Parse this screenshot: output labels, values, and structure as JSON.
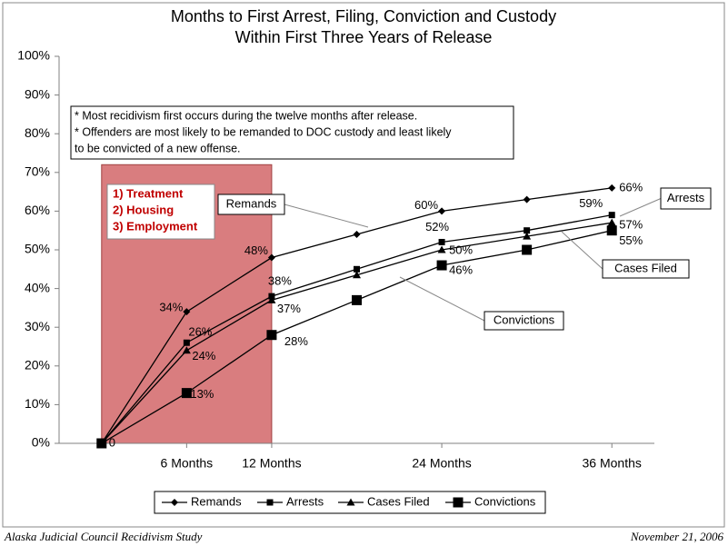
{
  "chart_data": {
    "type": "line",
    "title_lines": [
      "Months to First Arrest, Filing, Conviction and Custody",
      "Within First Three Years of Release"
    ],
    "x": [
      0,
      6,
      12,
      18,
      24,
      30,
      36
    ],
    "xlim": [
      -3,
      39
    ],
    "xticks": [
      {
        "value": 6,
        "label": "6 Months"
      },
      {
        "value": 12,
        "label": "12 Months"
      },
      {
        "value": 24,
        "label": "24 Months"
      },
      {
        "value": 36,
        "label": "36 Months"
      }
    ],
    "ylim": [
      0,
      100
    ],
    "yticks": [
      {
        "value": 0,
        "label": "0%"
      },
      {
        "value": 10,
        "label": "10%"
      },
      {
        "value": 20,
        "label": "20%"
      },
      {
        "value": 30,
        "label": "30%"
      },
      {
        "value": 40,
        "label": "40%"
      },
      {
        "value": 50,
        "label": "50%"
      },
      {
        "value": 60,
        "label": "60%"
      },
      {
        "value": 70,
        "label": "70%"
      },
      {
        "value": 80,
        "label": "80%"
      },
      {
        "value": 90,
        "label": "90%"
      },
      {
        "value": 100,
        "label": "100%"
      }
    ],
    "grid": false,
    "legend": "bottom",
    "series": [
      {
        "name": "Remands",
        "color": "#000000",
        "marker": "diamond",
        "values": [
          0,
          34,
          48,
          54,
          60,
          63,
          66
        ],
        "value_labels": [
          "0",
          "34%",
          "48%",
          null,
          "60%",
          null,
          "66%"
        ]
      },
      {
        "name": "Arrests",
        "color": "#000000",
        "marker": "square",
        "values": [
          0,
          26,
          38,
          45,
          52,
          55,
          59
        ],
        "value_labels": [
          null,
          "26%",
          "38%",
          null,
          "52%",
          null,
          "59%"
        ]
      },
      {
        "name": "Cases Filed",
        "color": "#000000",
        "marker": "triangle",
        "values": [
          0,
          24,
          37,
          43.5,
          50,
          53.5,
          57
        ],
        "value_labels": [
          null,
          "24%",
          "37%",
          null,
          "50%",
          null,
          "57%"
        ]
      },
      {
        "name": "Convictions",
        "color": "#000000",
        "marker": "big-square",
        "values": [
          0,
          13,
          28,
          37,
          46,
          50,
          55
        ],
        "value_labels": [
          null,
          "13%",
          "28%",
          null,
          "46%",
          null,
          "55%"
        ]
      }
    ],
    "highlight_region": {
      "x": [
        0,
        12
      ],
      "y": [
        0,
        72
      ],
      "color": "#d97d7f"
    },
    "priorities": [
      "1)  Treatment",
      "2)  Housing",
      "3)  Employment"
    ],
    "notes": [
      "* Most recidivism first occurs during the twelve months after release.",
      "* Offenders are most likely to be remanded to DOC custody and least likely",
      "to be convicted of a new offense."
    ],
    "callouts": [
      "Remands",
      "Arrests",
      "Cases Filed",
      "Convictions"
    ],
    "source": "Alaska Judicial Council Recidivism Study",
    "date": "November 21, 2006"
  }
}
